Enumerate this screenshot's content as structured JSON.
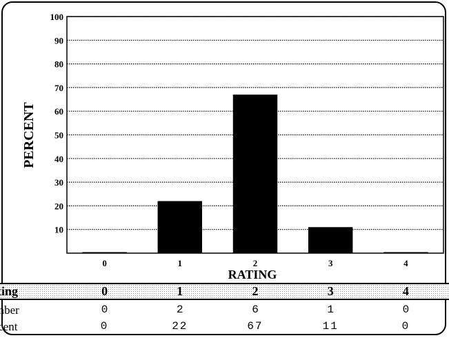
{
  "chart_data": {
    "type": "bar",
    "categories": [
      "0",
      "1",
      "2",
      "3",
      "4"
    ],
    "values": [
      0,
      22,
      67,
      11,
      0
    ],
    "xlabel": "RATING",
    "ylabel": "PERCENT",
    "ylim": [
      0,
      100
    ],
    "yticks": [
      10,
      20,
      30,
      40,
      50,
      60,
      70,
      80,
      90,
      100
    ],
    "grid": true,
    "bar_color": "#000000"
  },
  "table": {
    "rating_label": "Rating",
    "number_label": "Number",
    "percent_label": "Percent",
    "ratings": [
      "0",
      "1",
      "2",
      "3",
      "4"
    ],
    "numbers": [
      "0",
      "2",
      "6",
      "1",
      "0"
    ],
    "percents": [
      "0",
      "22",
      "67",
      "11",
      "0"
    ]
  }
}
